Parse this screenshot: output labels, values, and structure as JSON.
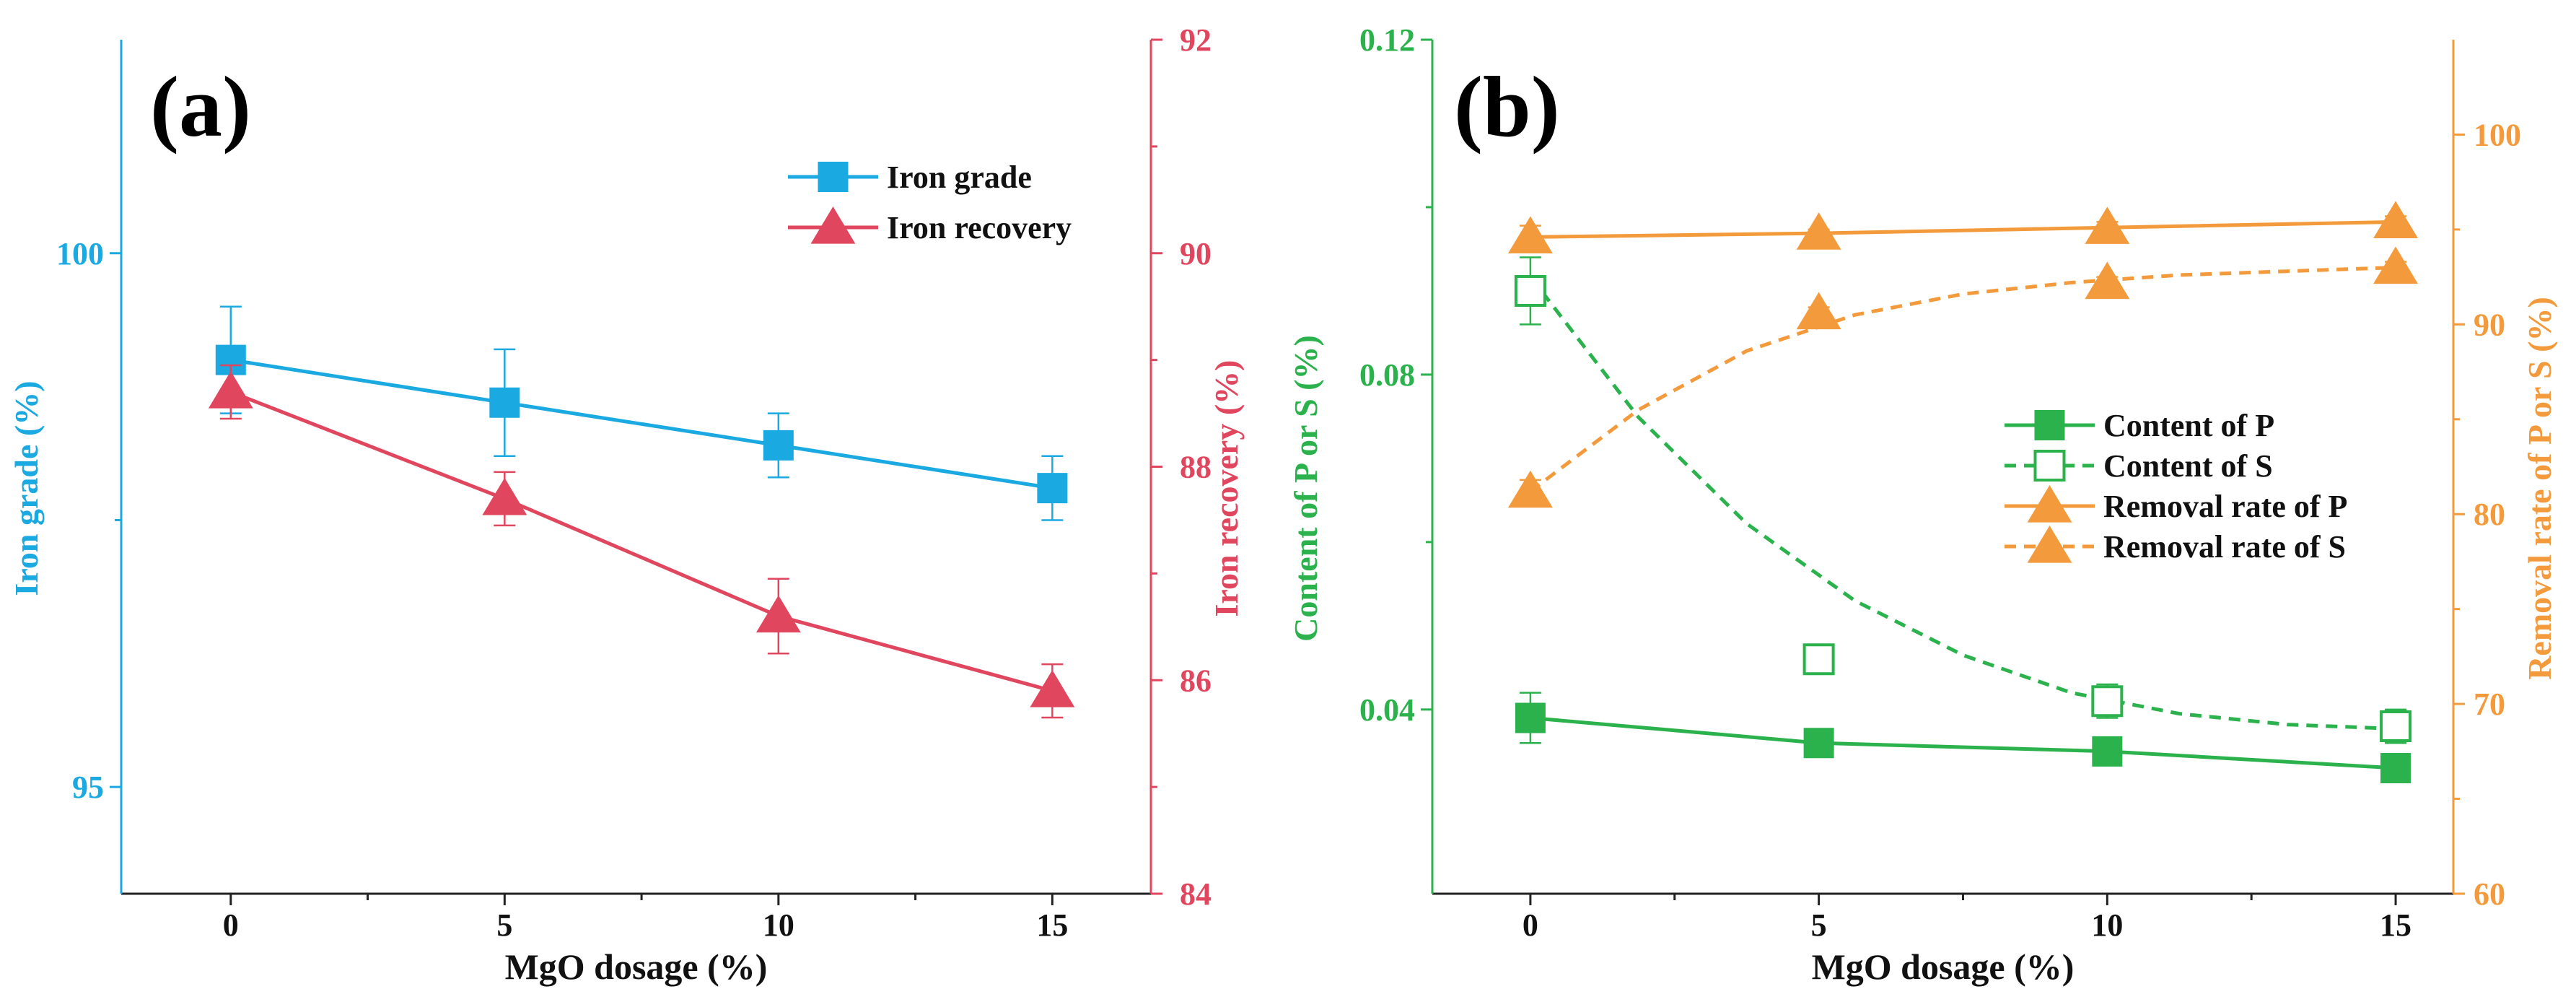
{
  "chart_data": [
    {
      "type": "line",
      "panel_label": "(a)",
      "xlabel": "MgO dosage (%)",
      "x": [
        0,
        5,
        10,
        15
      ],
      "xticks": [
        "0",
        "5",
        "10",
        "15"
      ],
      "xlim": [
        -2,
        16.8
      ],
      "y_left": {
        "label": "Iron grade (%)",
        "ylim": [
          94,
          102
        ],
        "ticks": [
          "95",
          "100"
        ],
        "color": "#1aa9e0"
      },
      "y_right": {
        "label": "Iron recovery (%)",
        "ylim": [
          84,
          92
        ],
        "ticks": [
          "84",
          "86",
          "88",
          "90",
          "92"
        ],
        "color": "#e0475f"
      },
      "series": [
        {
          "name": "Iron grade",
          "axis": "left",
          "marker": "square",
          "color": "#1aa9e0",
          "values": [
            99.0,
            98.6,
            98.2,
            97.8
          ],
          "errors": [
            0.5,
            0.5,
            0.3,
            0.3
          ],
          "smooth": false,
          "dashed": false
        },
        {
          "name": "Iron recovery",
          "axis": "right",
          "marker": "triangle",
          "color": "#e0475f",
          "values": [
            88.7,
            87.7,
            86.6,
            85.9
          ],
          "errors": [
            0.25,
            0.25,
            0.35,
            0.25
          ],
          "smooth": false,
          "dashed": false
        }
      ],
      "legend": [
        "Iron grade",
        "Iron recovery"
      ],
      "legend_position": "top-right"
    },
    {
      "type": "line",
      "panel_label": "(b)",
      "xlabel": "MgO dosage (%)",
      "x": [
        0,
        5,
        10,
        15
      ],
      "xticks": [
        "0",
        "5",
        "10",
        "15"
      ],
      "xlim": [
        -1.7,
        16.0
      ],
      "y_left": {
        "label": "Content of P or S (%)",
        "ylim": [
          0.018,
          0.12
        ],
        "ticks": [
          "0.04",
          "0.08",
          "0.12"
        ],
        "color": "#2bb24c"
      },
      "y_right": {
        "label": "Removal rate of P or S (%)",
        "ylim": [
          60,
          105
        ],
        "ticks": [
          "60",
          "70",
          "80",
          "90",
          "100"
        ],
        "color": "#f39a3c"
      },
      "series": [
        {
          "name": "Content of P",
          "axis": "left",
          "marker": "square",
          "filled": true,
          "color": "#2bb24c",
          "values": [
            0.039,
            0.036,
            0.035,
            0.033
          ],
          "errors": [
            0.003,
            0.001,
            0.001,
            0.001
          ],
          "smooth": false,
          "dashed": false
        },
        {
          "name": "Content of S",
          "axis": "left",
          "marker": "square",
          "filled": false,
          "color": "#2bb24c",
          "values": [
            0.09,
            0.046,
            0.041,
            0.038
          ],
          "errors": [
            0.004,
            0.001,
            0.002,
            0.002
          ],
          "smooth": true,
          "dashed": true,
          "fit": [
            0.0917,
            0.0749,
            0.0622,
            0.053,
            0.0465,
            0.042,
            0.0395,
            0.0382,
            0.0377
          ]
        },
        {
          "name": "Removal rate of P",
          "axis": "right",
          "marker": "triangle",
          "filled": true,
          "color": "#f39a3c",
          "values": [
            94.6,
            94.8,
            95.1,
            95.4
          ],
          "errors": [
            0.6,
            0.2,
            0.3,
            0.3
          ],
          "smooth": false,
          "dashed": false
        },
        {
          "name": "Removal rate of S",
          "axis": "right",
          "marker": "triangle",
          "filled": true,
          "color": "#f39a3c",
          "values": [
            81.2,
            90.6,
            92.2,
            93.0
          ],
          "errors": [
            0.6,
            0.3,
            0.3,
            0.3
          ],
          "smooth": true,
          "dashed": true,
          "fit": [
            81.2,
            85.5,
            88.6,
            90.5,
            91.6,
            92.2,
            92.6,
            92.8,
            93.0
          ]
        }
      ],
      "legend": [
        "Content of P",
        "Content of S",
        "Removal rate of P",
        "Removal rate of S"
      ],
      "legend_position": "center-right"
    }
  ]
}
